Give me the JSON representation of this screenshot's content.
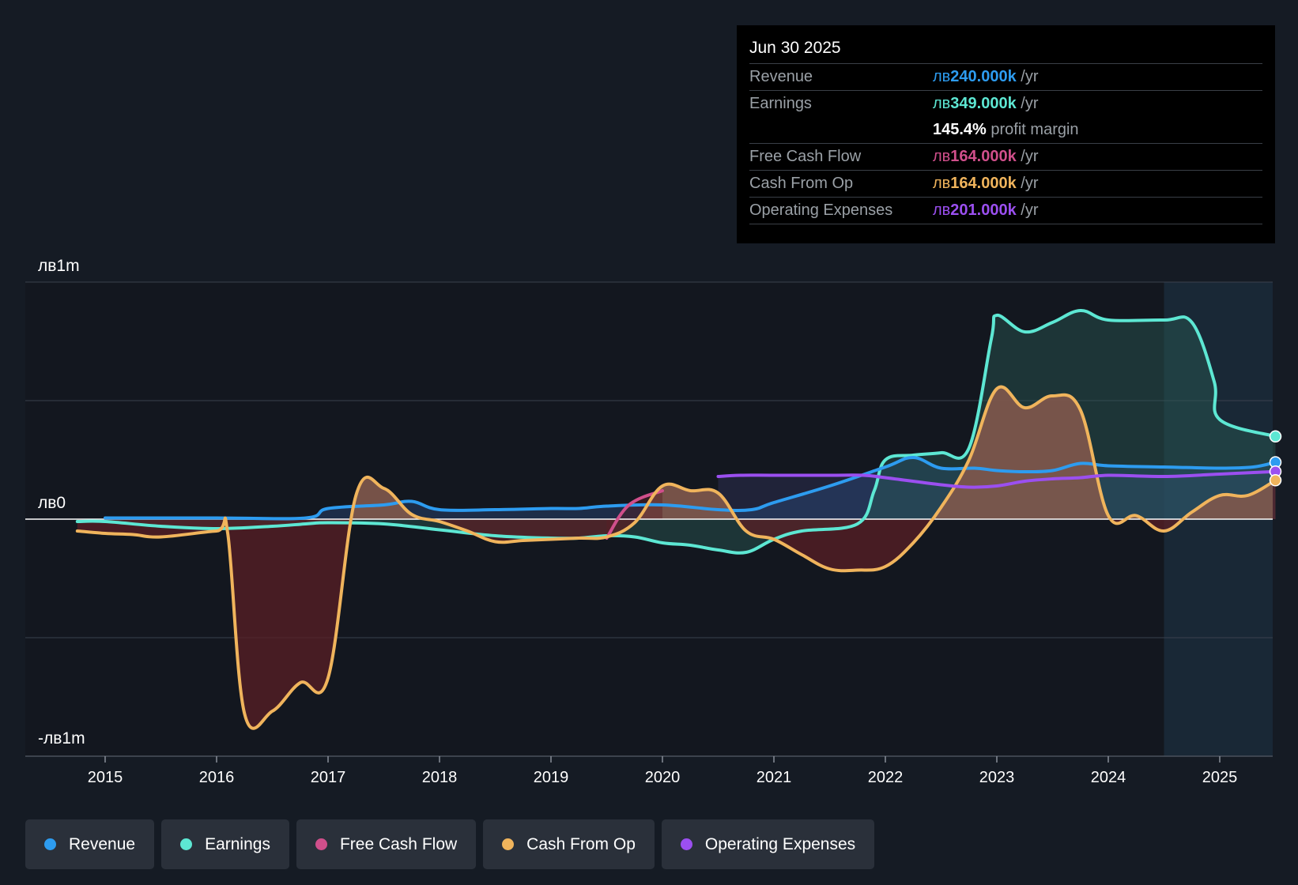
{
  "chart_data": {
    "type": "area",
    "title": "",
    "currency_symbol": "лв",
    "y_labels": [
      {
        "value": 1000000,
        "text": "лв1m"
      },
      {
        "value": 0,
        "text": "лв0"
      },
      {
        "value": -1000000,
        "text": "-лв1m"
      }
    ],
    "ylim": [
      -1000000,
      1000000
    ],
    "xlim": [
      2014.3,
      2025.5
    ],
    "x_ticks": [
      2015,
      2016,
      2017,
      2018,
      2019,
      2020,
      2021,
      2022,
      2023,
      2024,
      2025
    ],
    "x_tick_labels": [
      "2015",
      "2016",
      "2017",
      "2018",
      "2019",
      "2020",
      "2021",
      "2022",
      "2023",
      "2024",
      "2025"
    ],
    "forecast_start": 2024.5,
    "series": [
      {
        "name": "Revenue",
        "key": "revenue",
        "color": "#2d9cf0",
        "x": [
          2015.0,
          2016.0,
          2016.8,
          2017.0,
          2017.5,
          2017.75,
          2018.0,
          2018.5,
          2019.0,
          2019.25,
          2019.5,
          2020.0,
          2020.5,
          2020.8,
          2021.0,
          2021.5,
          2022.0,
          2022.25,
          2022.5,
          2022.8,
          2023.0,
          2023.25,
          2023.5,
          2023.75,
          2024.0,
          2024.5,
          2025.0,
          2025.3,
          2025.5
        ],
        "y": [
          5000,
          5000,
          5000,
          45000,
          60000,
          75000,
          40000,
          40000,
          45000,
          45000,
          55000,
          60000,
          40000,
          40000,
          70000,
          140000,
          220000,
          260000,
          215000,
          215000,
          205000,
          200000,
          205000,
          235000,
          225000,
          220000,
          215000,
          220000,
          240000
        ]
      },
      {
        "name": "Earnings",
        "key": "earnings",
        "color": "#5de7d3",
        "x": [
          2014.75,
          2015.0,
          2015.5,
          2016.0,
          2016.5,
          2016.8,
          2017.0,
          2017.5,
          2018.0,
          2018.5,
          2019.0,
          2019.25,
          2019.5,
          2019.75,
          2020.0,
          2020.25,
          2020.5,
          2020.75,
          2021.0,
          2021.25,
          2021.75,
          2021.9,
          2022.0,
          2022.25,
          2022.5,
          2022.75,
          2022.95,
          2023.0,
          2023.25,
          2023.5,
          2023.75,
          2024.0,
          2024.5,
          2024.75,
          2024.95,
          2025.0,
          2025.5
        ],
        "y": [
          -10000,
          -10000,
          -30000,
          -40000,
          -30000,
          -20000,
          -15000,
          -20000,
          -45000,
          -70000,
          -80000,
          -80000,
          -70000,
          -75000,
          -100000,
          -110000,
          -130000,
          -140000,
          -85000,
          -50000,
          -20000,
          120000,
          250000,
          270000,
          280000,
          300000,
          760000,
          860000,
          790000,
          830000,
          880000,
          840000,
          840000,
          830000,
          580000,
          420000,
          349000
        ]
      },
      {
        "name": "Free Cash Flow",
        "key": "fcf",
        "color": "#d04f8b",
        "x": [
          2019.5,
          2019.7,
          2020.0
        ],
        "y": [
          -80000,
          60000,
          120000
        ]
      },
      {
        "name": "Cash From Op",
        "key": "cfo",
        "color": "#f0b45c",
        "x": [
          2014.75,
          2015.0,
          2015.25,
          2015.5,
          2016.0,
          2016.1,
          2016.25,
          2016.5,
          2016.75,
          2017.0,
          2017.25,
          2017.5,
          2017.75,
          2018.0,
          2018.25,
          2018.5,
          2018.75,
          2019.0,
          2019.25,
          2019.5,
          2019.75,
          2020.0,
          2020.25,
          2020.5,
          2020.75,
          2021.0,
          2021.25,
          2021.5,
          2021.75,
          2022.0,
          2022.25,
          2022.5,
          2022.75,
          2023.0,
          2023.25,
          2023.5,
          2023.75,
          2024.0,
          2024.25,
          2024.5,
          2024.75,
          2025.0,
          2025.25,
          2025.5
        ],
        "y": [
          -50000,
          -60000,
          -65000,
          -75000,
          -50000,
          -60000,
          -820000,
          -810000,
          -690000,
          -670000,
          100000,
          130000,
          20000,
          -10000,
          -50000,
          -95000,
          -90000,
          -85000,
          -80000,
          -75000,
          -15000,
          140000,
          120000,
          110000,
          -50000,
          -85000,
          -150000,
          -210000,
          -215000,
          -200000,
          -100000,
          50000,
          250000,
          550000,
          470000,
          520000,
          460000,
          15000,
          15000,
          -50000,
          30000,
          100000,
          100000,
          164000
        ]
      },
      {
        "name": "Operating Expenses",
        "key": "opex",
        "color": "#9b4ff0",
        "x": [
          2020.5,
          2020.7,
          2021.0,
          2021.5,
          2021.8,
          2022.0,
          2022.5,
          2022.75,
          2023.0,
          2023.25,
          2023.5,
          2023.75,
          2024.0,
          2024.5,
          2025.0,
          2025.5
        ],
        "y": [
          180000,
          185000,
          185000,
          185000,
          185000,
          175000,
          145000,
          135000,
          140000,
          160000,
          170000,
          175000,
          185000,
          180000,
          190000,
          201000
        ]
      }
    ]
  },
  "tooltip": {
    "date": "Jun 30 2025",
    "rows": [
      {
        "label": "Revenue",
        "currency": "лв",
        "value": "240.000k",
        "unit": " /yr",
        "color": "#2d9cf0"
      },
      {
        "label": "Earnings",
        "currency": "лв",
        "value": "349.000k",
        "unit": " /yr",
        "color": "#5de7d3"
      },
      {
        "label": "",
        "value": "145.4%",
        "unit": " profit margin",
        "color": "#ffffff"
      },
      {
        "label": "Free Cash Flow",
        "currency": "лв",
        "value": "164.000k",
        "unit": " /yr",
        "color": "#d04f8b"
      },
      {
        "label": "Cash From Op",
        "currency": "лв",
        "value": "164.000k",
        "unit": " /yr",
        "color": "#f0b45c"
      },
      {
        "label": "Operating Expenses",
        "currency": "лв",
        "value": "201.000k",
        "unit": " /yr",
        "color": "#9b4ff0"
      }
    ]
  },
  "legend": [
    {
      "label": "Revenue",
      "color": "#2d9cf0"
    },
    {
      "label": "Earnings",
      "color": "#5de7d3"
    },
    {
      "label": "Free Cash Flow",
      "color": "#d04f8b"
    },
    {
      "label": "Cash From Op",
      "color": "#f0b45c"
    },
    {
      "label": "Operating Expenses",
      "color": "#9b4ff0"
    }
  ]
}
